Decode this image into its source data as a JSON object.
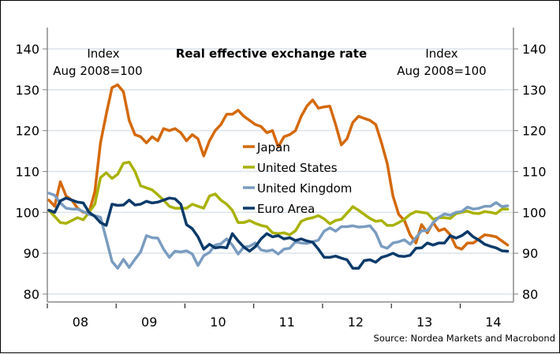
{
  "chart_data": {
    "type": "line",
    "title": "Real effective exchange rate",
    "left_axis_note": [
      "Index",
      "Aug 2008=100"
    ],
    "right_axis_note": [
      "Index",
      "Aug 2008=100"
    ],
    "source": "Source: Nordea Markets and Macrobond",
    "ylim": [
      80,
      140
    ],
    "yticks": [
      80,
      90,
      100,
      110,
      120,
      130,
      140
    ],
    "ytick_labels": [
      "80",
      "90",
      "100",
      "110",
      "120",
      "130",
      "140"
    ],
    "xlabel": "",
    "ylabel": "",
    "grid": true,
    "x_start": "Jan 2008",
    "x_frequency": "monthly",
    "xtick_labels": [
      "08",
      "09",
      "10",
      "11",
      "12",
      "13",
      "14"
    ],
    "legend_position": "center",
    "series": [
      {
        "name": "Japan",
        "color": "#D4690A",
        "values": [
          103,
          101.5,
          107.5,
          104,
          103,
          101,
          100,
          100,
          105,
          117,
          124,
          130.5,
          131.2,
          129.5,
          122.5,
          119,
          118.5,
          117,
          118.5,
          117.5,
          120.5,
          120,
          120.5,
          119.5,
          117.5,
          119,
          118,
          113.8,
          117.5,
          120,
          121.5,
          124,
          124,
          125,
          123.5,
          122.5,
          121.5,
          121,
          119.5,
          120,
          116,
          118.5,
          119,
          120,
          123.5,
          126,
          127.5,
          125.5,
          125.8,
          126,
          121.5,
          116.5,
          118,
          122,
          123.5,
          123,
          122.5,
          121.5,
          117,
          112,
          104,
          99.5,
          98,
          94.5,
          92.5,
          97,
          95,
          97.5,
          95.5,
          96,
          94.5,
          91.5,
          91,
          92.5,
          92.5,
          93.5,
          94.5,
          94.3,
          94,
          93,
          92
        ]
      },
      {
        "name": "United States",
        "color": "#A9B200",
        "values": [
          100.5,
          99,
          97.5,
          97.3,
          98,
          98.7,
          98.2,
          100,
          102,
          108.5,
          109.7,
          108.3,
          109.3,
          112,
          112.3,
          110,
          106.5,
          106,
          105.5,
          104.3,
          103,
          101.5,
          101,
          101,
          101,
          102,
          101.5,
          101,
          104,
          104.5,
          103,
          102,
          100.5,
          97.5,
          97.5,
          98,
          97.3,
          96.8,
          96.5,
          95,
          94.8,
          95,
          94.5,
          95.5,
          97.8,
          98.4,
          98.7,
          99.2,
          98.4,
          97.2,
          98,
          98.3,
          99.8,
          101.4,
          100.5,
          99.5,
          98.5,
          97.8,
          98,
          96.8,
          96.8,
          97.5,
          98.3,
          99.5,
          100.2,
          100,
          99.8,
          98.3,
          98.7,
          98.7,
          98.5,
          99.7,
          100,
          100.3,
          99.8,
          99.7,
          100.2,
          100,
          99.7,
          100.8,
          100.8
        ]
      },
      {
        "name": "United Kingdom",
        "color": "#7A9CC0",
        "values": [
          104.7,
          104.2,
          102.3,
          101,
          100.8,
          100.8,
          100.2,
          99.5,
          99.2,
          98.8,
          93.5,
          88,
          86.3,
          88.5,
          86.5,
          88.5,
          90.3,
          94.3,
          93.8,
          93.7,
          91,
          89,
          90.5,
          90.3,
          90.6,
          89.8,
          87,
          89.4,
          90.2,
          92,
          92.3,
          93.5,
          92,
          89.8,
          91.5,
          91.7,
          92.5,
          90.8,
          90.5,
          90.8,
          89.8,
          91,
          91.2,
          92.8,
          92.5,
          92.4,
          92.8,
          93.2,
          95.4,
          96.2,
          95.4,
          96.5,
          96.5,
          96.7,
          96.4,
          96.5,
          96.7,
          95,
          91.7,
          91.2,
          92.5,
          92.8,
          93.3,
          92.2,
          93.8,
          95.5,
          95.5,
          97.4,
          98.8,
          99.6,
          99.3,
          100,
          100.2,
          101.3,
          100.8,
          101,
          101.5,
          101.5,
          102.4,
          101.4,
          101.6
        ]
      },
      {
        "name": "Euro Area",
        "color": "#0B3A6A",
        "values": [
          100.5,
          100,
          102.8,
          103.5,
          103,
          102.5,
          102.3,
          100,
          99,
          97.5,
          96.8,
          102,
          101.7,
          101.8,
          103,
          101.8,
          102,
          102.7,
          102.3,
          102.5,
          103,
          103.5,
          103.3,
          102,
          97,
          96,
          94,
          91,
          92.2,
          91.3,
          91.5,
          91.3,
          94.8,
          93,
          91.5,
          90.5,
          91.6,
          93.5,
          94.8,
          94,
          94.3,
          93.5,
          93.8,
          93.1,
          93.5,
          93,
          92.7,
          91,
          89,
          89,
          89.3,
          88.8,
          88.4,
          86.3,
          86.3,
          88.2,
          88.4,
          87.8,
          89,
          89.4,
          90,
          89.3,
          89.2,
          89.5,
          91.2,
          91.3,
          92.5,
          92,
          92.5,
          92.5,
          94.3,
          93.7,
          94.3,
          95.3,
          94,
          93.2,
          92.2,
          91.7,
          91.3,
          90.6,
          90.5
        ]
      }
    ]
  }
}
